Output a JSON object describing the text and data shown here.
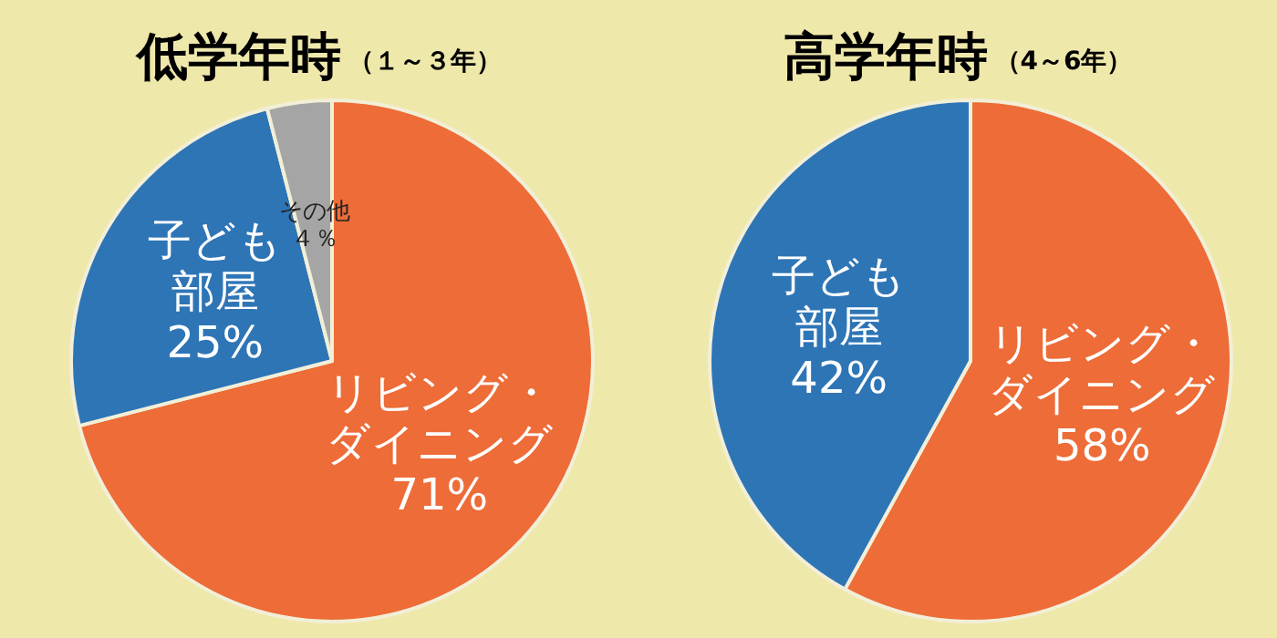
{
  "chart_data": [
    {
      "type": "pie",
      "title": "低学年時",
      "subtitle": "（１～３年）",
      "categories": [
        "リビング・ダイニング",
        "子ども部屋",
        "その他"
      ],
      "values": [
        71,
        25,
        4
      ],
      "value_labels": [
        "71%",
        "25%",
        "４％"
      ],
      "colors": [
        "#ed6c37",
        "#2e75b6",
        "#a5a5a5"
      ]
    },
    {
      "type": "pie",
      "title": "高学年時",
      "subtitle": "（4～6年）",
      "categories": [
        "リビング・ダイニング",
        "子ども部屋"
      ],
      "values": [
        58,
        42
      ],
      "value_labels": [
        "58%",
        "42%"
      ],
      "colors": [
        "#ed6c37",
        "#2e75b6"
      ]
    }
  ]
}
